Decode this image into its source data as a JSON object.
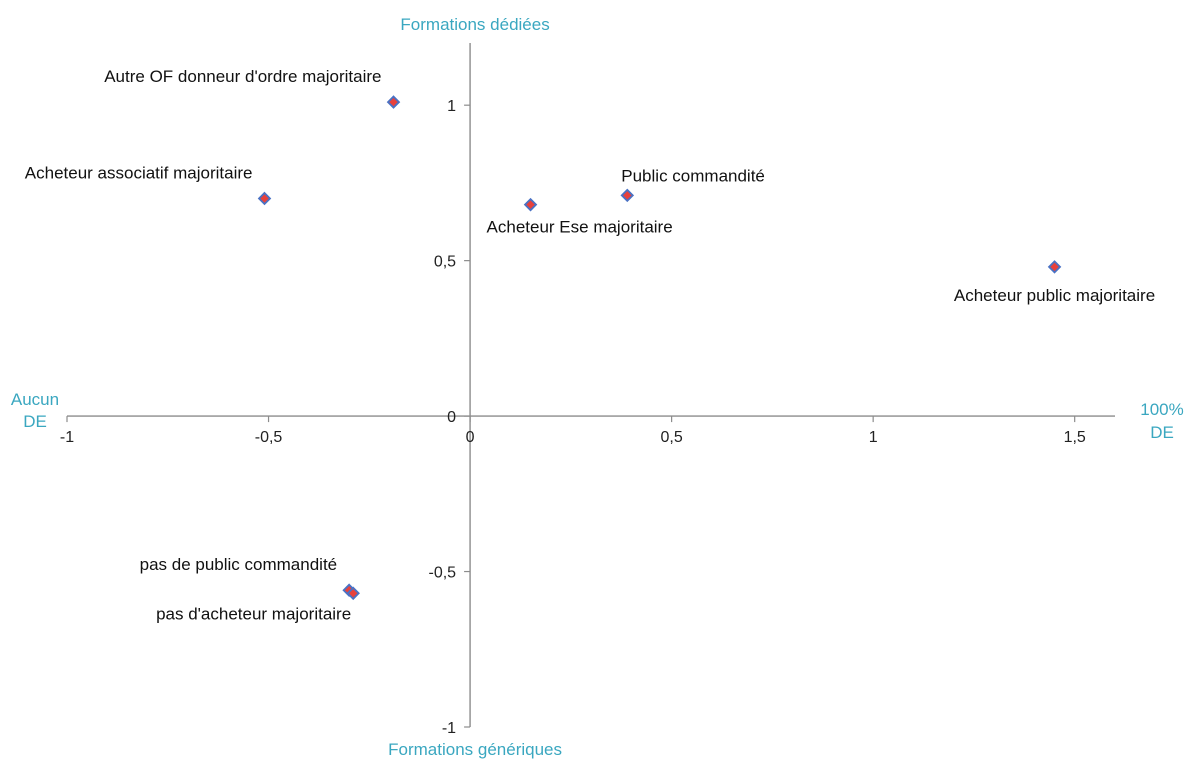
{
  "chart_data": {
    "type": "scatter",
    "axis_titles": {
      "top": "Formations dédiées",
      "bottom": "Formations génériques",
      "left": [
        "Aucun",
        "DE"
      ],
      "right": [
        "100%",
        "DE"
      ]
    },
    "axis_title_color": "#3aa7c0",
    "marker_fill": "#e8413c",
    "marker_stroke": "#4a72c4",
    "xlim": [
      -1,
      1.6
    ],
    "ylim": [
      -1,
      1.2
    ],
    "x_ticks": [
      {
        "value": -1,
        "label": "-1"
      },
      {
        "value": -0.5,
        "label": "-0,5"
      },
      {
        "value": 0,
        "label": "0"
      },
      {
        "value": 0.5,
        "label": "0,5"
      },
      {
        "value": 1,
        "label": "1"
      },
      {
        "value": 1.5,
        "label": "1,5"
      }
    ],
    "y_ticks": [
      {
        "value": -1,
        "label": "-1"
      },
      {
        "value": -0.5,
        "label": "-0,5"
      },
      {
        "value": 0,
        "label": "0"
      },
      {
        "value": 0.5,
        "label": "0,5"
      },
      {
        "value": 1,
        "label": "1"
      }
    ],
    "points": [
      {
        "x": -0.19,
        "y": 1.01,
        "label": "Autre OF donneur d'ordre majoritaire",
        "label_pos": "above-left"
      },
      {
        "x": -0.51,
        "y": 0.7,
        "label": "Acheteur associatif majoritaire",
        "label_pos": "above-left"
      },
      {
        "x": 0.15,
        "y": 0.68,
        "label": "Acheteur Ese majoritaire",
        "label_pos": "below-right"
      },
      {
        "x": 0.39,
        "y": 0.71,
        "label": "Public commandité",
        "label_pos": "above-right"
      },
      {
        "x": 1.45,
        "y": 0.48,
        "label": "Acheteur public majoritaire",
        "label_pos": "below"
      },
      {
        "x": -0.3,
        "y": -0.56,
        "label": "pas de public commandité",
        "label_pos": "above-left"
      },
      {
        "x": -0.29,
        "y": -0.57,
        "label": "pas d'acheteur majoritaire",
        "label_pos": "below-left"
      }
    ]
  }
}
